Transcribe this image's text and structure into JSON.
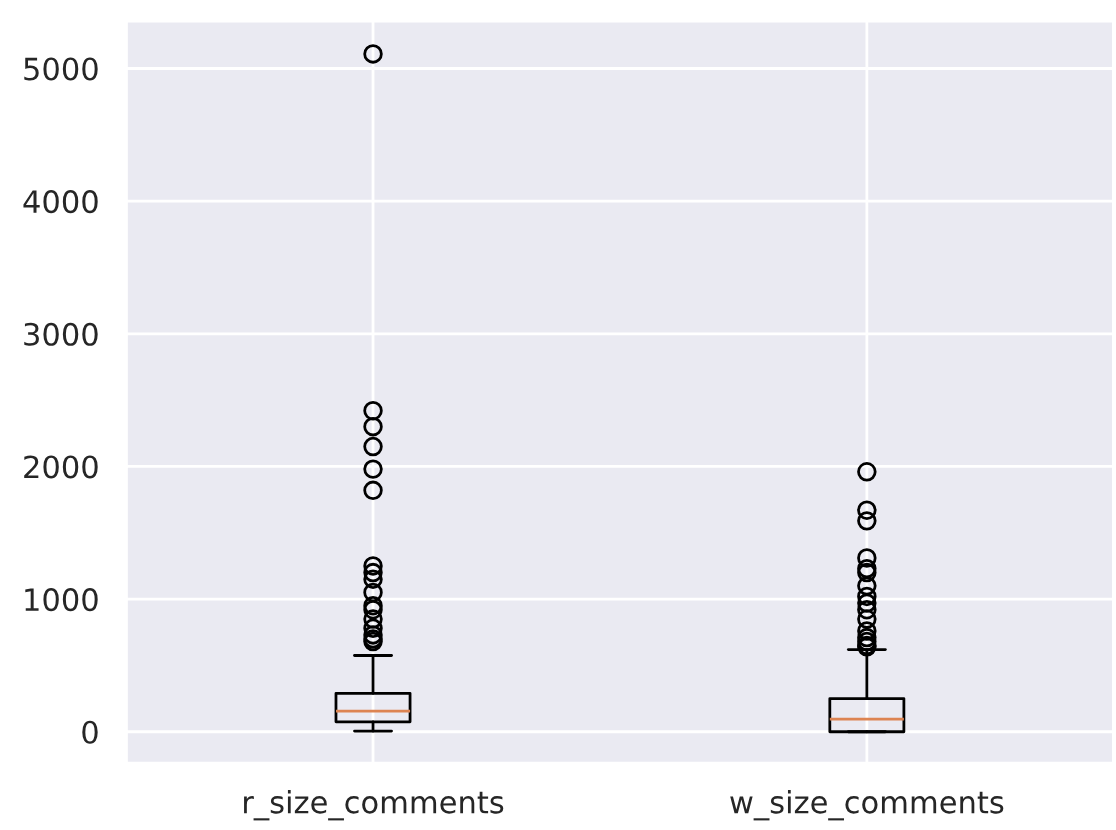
{
  "chart_data": {
    "type": "box",
    "categories": [
      "r_size_comments",
      "w_size_comments"
    ],
    "boxes": [
      {
        "low": 5,
        "q1": 75,
        "median": 155,
        "q3": 290,
        "high": 575,
        "outliers": [
          5110,
          2420,
          2300,
          2150,
          1980,
          1820,
          1250,
          1200,
          1150,
          1050,
          950,
          920,
          850,
          780,
          730,
          700,
          680
        ]
      },
      {
        "low": 0,
        "q1": 0,
        "median": 95,
        "q3": 250,
        "high": 620,
        "outliers": [
          1960,
          1670,
          1590,
          1310,
          1230,
          1200,
          1100,
          1020,
          970,
          920,
          850,
          760,
          710,
          680,
          650,
          640
        ]
      }
    ],
    "ylim": [
      -240,
      5360
    ],
    "yticks": [
      0,
      1000,
      2000,
      3000,
      4000,
      5000
    ],
    "grid": true,
    "color": "#000000"
  }
}
